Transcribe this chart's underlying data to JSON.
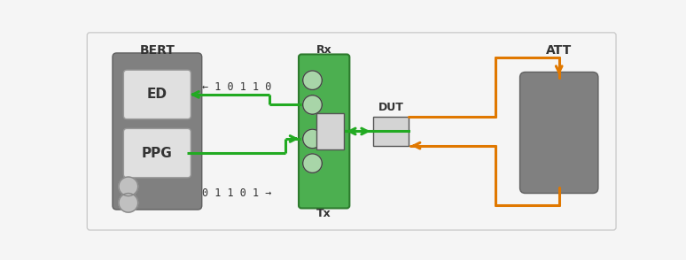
{
  "bg_color": "#f5f5f5",
  "border_color": "#cccccc",
  "green_color": "#22aa22",
  "orange_color": "#e07800",
  "line_width": 2.2,
  "bert_label": "BERT",
  "att_label": "ATT",
  "rx_label": "Rx",
  "tx_label": "Tx",
  "dut_label": "DUT",
  "ed_label": "ED",
  "ppg_label": "PPG",
  "bit_top": "← 1 0 1 1 0",
  "bit_bot": "0 1 1 0 1 →"
}
